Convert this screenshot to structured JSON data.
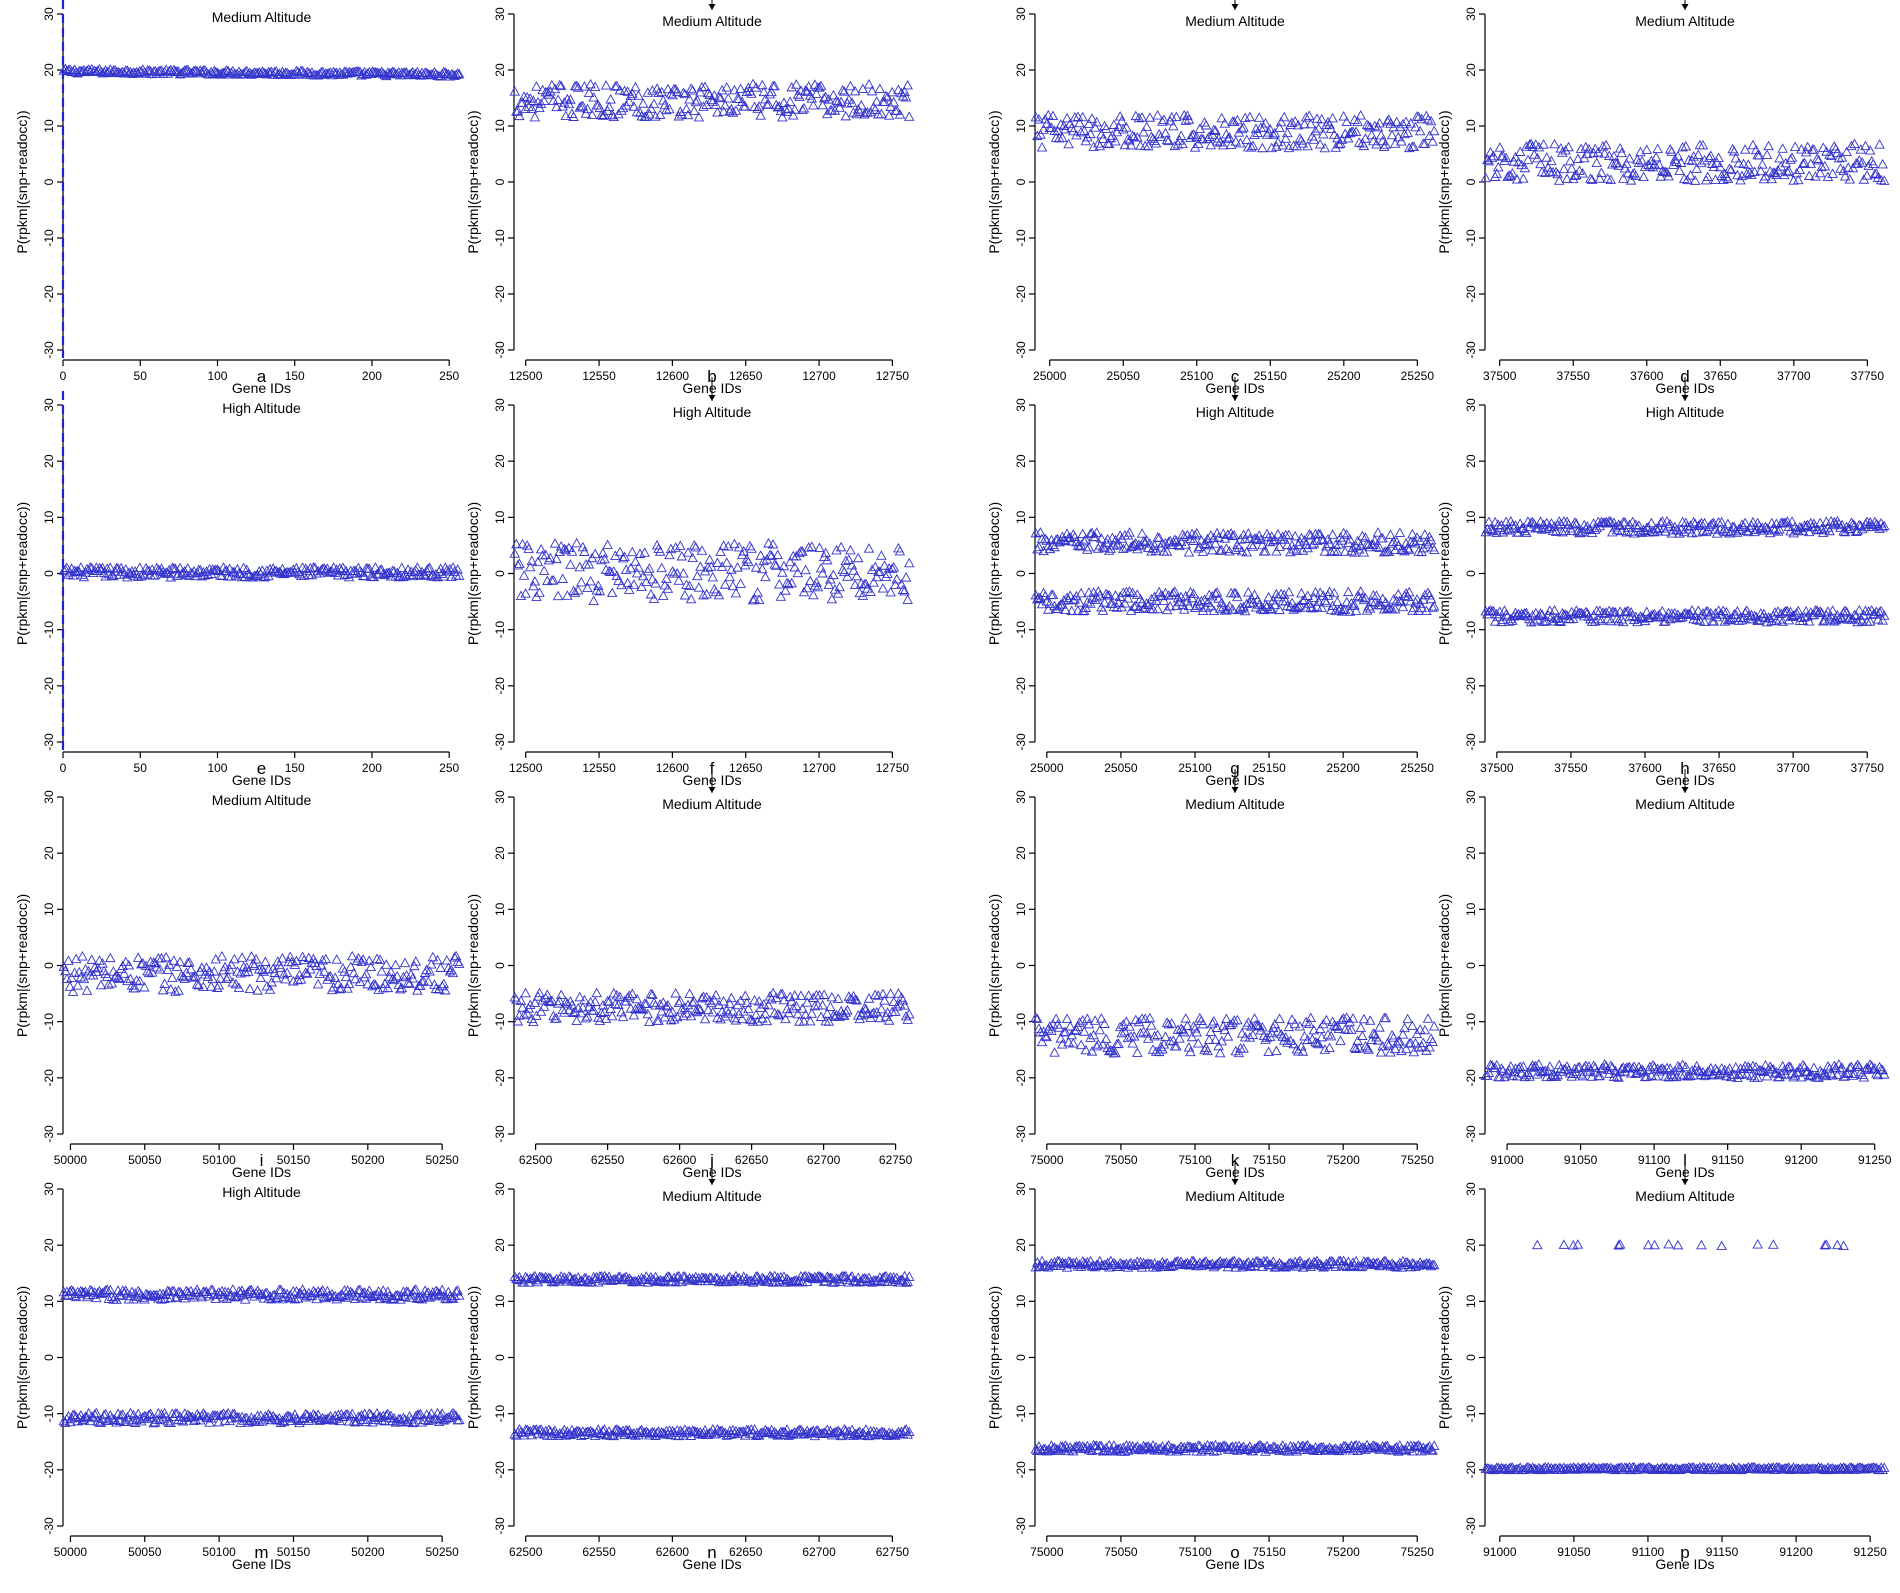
{
  "gene_ids_label": "Gene IDs",
  "ylabel": "P(rpkm|(snp+readocc))",
  "colors": {
    "marker": "#3333cc",
    "vline": "#2222cc",
    "axis": "#000000"
  },
  "chart_data": [
    {
      "id": "a",
      "type": "scatter",
      "title": "Medium Altitude",
      "arrow": false,
      "letter": "a",
      "xlabel": "Gene IDs",
      "ylabel": "P(rpkm|(snp+readocc))",
      "xlim": [
        0,
        257
      ],
      "xticks": [
        0,
        50,
        100,
        150,
        200,
        250
      ],
      "ylim": [
        -30,
        30
      ],
      "yticks": [
        -30,
        -20,
        -10,
        0,
        10,
        20,
        30
      ],
      "vline": 0,
      "series": [
        {
          "name": "",
          "center": 19.8,
          "spread": 0.4,
          "drift": -0.6
        }
      ]
    },
    {
      "id": "e",
      "type": "scatter",
      "title": "High Altitude",
      "arrow": false,
      "letter": "e",
      "xlabel": "Gene IDs",
      "ylabel": "P(rpkm|(snp+readocc))",
      "xlim": [
        0,
        257
      ],
      "xticks": [
        0,
        50,
        100,
        150,
        200,
        250
      ],
      "ylim": [
        -30,
        30
      ],
      "yticks": [
        -30,
        -20,
        -10,
        0,
        10,
        20,
        30
      ],
      "vline": 0,
      "series": [
        {
          "name": "",
          "center": 0.2,
          "spread": 0.9,
          "drift": 0
        }
      ]
    },
    {
      "id": "i",
      "type": "scatter",
      "title": "Medium Altitude",
      "arrow": false,
      "letter": "i",
      "xlabel": "Gene IDs",
      "ylabel": "P(rpkm|(snp+readocc))",
      "xlim": [
        49995,
        50262
      ],
      "xticks": [
        50000,
        50050,
        50100,
        50150,
        50200,
        50250
      ],
      "ylim": [
        -30,
        30
      ],
      "yticks": [
        -30,
        -20,
        -10,
        0,
        10,
        20,
        30
      ],
      "vline": null,
      "series": [
        {
          "name": "",
          "center": -1.5,
          "spread": 3.2,
          "drift": 0
        }
      ]
    },
    {
      "id": "m",
      "type": "scatter",
      "title": "High Altitude",
      "arrow": false,
      "letter": "m",
      "xlabel": "Gene IDs",
      "ylabel": "P(rpkm|(snp+readocc))",
      "xlim": [
        49995,
        50262
      ],
      "xticks": [
        50000,
        50050,
        50100,
        50150,
        50200,
        50250
      ],
      "ylim": [
        -30,
        30
      ],
      "yticks": [
        -30,
        -20,
        -10,
        0,
        10,
        20,
        30
      ],
      "vline": null,
      "series": [
        {
          "name": "",
          "center": 11.2,
          "spread": 0.9,
          "drift": 0
        },
        {
          "name": "",
          "center": -10.8,
          "spread": 0.9,
          "drift": 0
        }
      ]
    },
    {
      "id": "b",
      "type": "scatter",
      "title": "Medium Altitude",
      "arrow": true,
      "letter": "b",
      "xlabel": "Gene IDs",
      "ylabel": "P(rpkm|(snp+readocc))",
      "xlim": [
        12492,
        12762
      ],
      "xticks": [
        12500,
        12550,
        12600,
        12650,
        12700,
        12750
      ],
      "ylim": [
        -30,
        30
      ],
      "yticks": [
        -30,
        -20,
        -10,
        0,
        10,
        20,
        30
      ],
      "vline": null,
      "series": [
        {
          "name": "",
          "center": 14.5,
          "spread": 3,
          "drift": 0
        }
      ]
    },
    {
      "id": "f",
      "type": "scatter",
      "title": "High Altitude",
      "arrow": true,
      "letter": "f",
      "xlabel": "Gene IDs",
      "ylabel": "P(rpkm|(snp+readocc))",
      "xlim": [
        12492,
        12762
      ],
      "xticks": [
        12500,
        12550,
        12600,
        12650,
        12700,
        12750
      ],
      "ylim": [
        -30,
        30
      ],
      "yticks": [
        -30,
        -20,
        -10,
        0,
        10,
        20,
        30
      ],
      "vline": null,
      "series": [
        {
          "name": "",
          "center": 0.3,
          "spread": 5.2,
          "drift": 0
        }
      ]
    },
    {
      "id": "j",
      "type": "scatter",
      "title": "Medium Altitude",
      "arrow": true,
      "letter": "j",
      "xlabel": "Gene IDs",
      "ylabel": "P(rpkm|(snp+readocc))",
      "xlim": [
        62485,
        62760
      ],
      "xticks": [
        62500,
        62550,
        62600,
        62650,
        62700,
        62750
      ],
      "ylim": [
        -30,
        30
      ],
      "yticks": [
        -30,
        -20,
        -10,
        0,
        10,
        20,
        30
      ],
      "vline": null,
      "series": [
        {
          "name": "",
          "center": -7.5,
          "spread": 2.6,
          "drift": 0
        }
      ]
    },
    {
      "id": "n",
      "type": "scatter",
      "title": "Medium Altitude",
      "arrow": true,
      "letter": "n",
      "xlabel": "Gene IDs",
      "ylabel": "P(rpkm|(snp+readocc))",
      "xlim": [
        62492,
        62762
      ],
      "xticks": [
        62500,
        62550,
        62600,
        62650,
        62700,
        62750
      ],
      "ylim": [
        -30,
        30
      ],
      "yticks": [
        -30,
        -20,
        -10,
        0,
        10,
        20,
        30
      ],
      "vline": null,
      "series": [
        {
          "name": "",
          "center": 13.9,
          "spread": 0.6,
          "drift": 0
        },
        {
          "name": "",
          "center": -13.4,
          "spread": 0.6,
          "drift": 0
        }
      ]
    },
    {
      "id": "c",
      "type": "scatter",
      "title": "Medium Altitude",
      "arrow": true,
      "letter": "c",
      "xlabel": "Gene IDs",
      "ylabel": "P(rpkm|(snp+readocc))",
      "xlim": [
        24990,
        25262
      ],
      "xticks": [
        25000,
        25050,
        25100,
        25150,
        25200,
        25250
      ],
      "ylim": [
        -30,
        30
      ],
      "yticks": [
        -30,
        -20,
        -10,
        0,
        10,
        20,
        30
      ],
      "vline": null,
      "series": [
        {
          "name": "",
          "center": 9,
          "spread": 3,
          "drift": 0
        }
      ]
    },
    {
      "id": "g",
      "type": "scatter",
      "title": "High Altitude",
      "arrow": true,
      "letter": "g",
      "xlabel": "Gene IDs",
      "ylabel": "P(rpkm|(snp+readocc))",
      "xlim": [
        24992,
        25262
      ],
      "xticks": [
        25000,
        25050,
        25100,
        25150,
        25200,
        25250
      ],
      "ylim": [
        -30,
        30
      ],
      "yticks": [
        -30,
        -20,
        -10,
        0,
        10,
        20,
        30
      ],
      "vline": null,
      "series": [
        {
          "name": "",
          "center": 5.5,
          "spread": 1.8,
          "drift": 0
        },
        {
          "name": "",
          "center": -5,
          "spread": 1.8,
          "drift": 0
        }
      ]
    },
    {
      "id": "k",
      "type": "scatter",
      "title": "Medium Altitude",
      "arrow": true,
      "letter": "k",
      "xlabel": "Gene IDs",
      "ylabel": "P(rpkm|(snp+readocc))",
      "xlim": [
        74992,
        75262
      ],
      "xticks": [
        75000,
        75050,
        75100,
        75150,
        75200,
        75250
      ],
      "ylim": [
        -30,
        30
      ],
      "yticks": [
        -30,
        -20,
        -10,
        0,
        10,
        20,
        30
      ],
      "vline": null,
      "series": [
        {
          "name": "",
          "center": -12.5,
          "spread": 3.2,
          "drift": 0
        }
      ]
    },
    {
      "id": "o",
      "type": "scatter",
      "title": "Medium Altitude",
      "arrow": true,
      "letter": "o",
      "xlabel": "Gene IDs",
      "ylabel": "P(rpkm|(snp+readocc))",
      "xlim": [
        74992,
        75262
      ],
      "xticks": [
        75000,
        75050,
        75100,
        75150,
        75200,
        75250
      ],
      "ylim": [
        -30,
        30
      ],
      "yticks": [
        -30,
        -20,
        -10,
        0,
        10,
        20,
        30
      ],
      "vline": null,
      "series": [
        {
          "name": "",
          "center": 16.6,
          "spread": 0.6,
          "drift": 0
        },
        {
          "name": "",
          "center": -16.2,
          "spread": 0.6,
          "drift": 0
        }
      ]
    },
    {
      "id": "d",
      "type": "scatter",
      "title": "Medium Altitude",
      "arrow": true,
      "letter": "d",
      "xlabel": "Gene IDs",
      "ylabel": "P(rpkm|(snp+readocc))",
      "xlim": [
        37490,
        37762
      ],
      "xticks": [
        37500,
        37550,
        37600,
        37650,
        37700,
        37750
      ],
      "ylim": [
        -30,
        30
      ],
      "yticks": [
        -30,
        -20,
        -10,
        0,
        10,
        20,
        30
      ],
      "vline": null,
      "series": [
        {
          "name": "",
          "center": 3.5,
          "spread": 3.3,
          "drift": 0
        }
      ]
    },
    {
      "id": "h",
      "type": "scatter",
      "title": "High Altitude",
      "arrow": true,
      "letter": "h",
      "xlabel": "Gene IDs",
      "ylabel": "P(rpkm|(snp+readocc))",
      "xlim": [
        37492,
        37762
      ],
      "xticks": [
        37500,
        37550,
        37600,
        37650,
        37700,
        37750
      ],
      "ylim": [
        -30,
        30
      ],
      "yticks": [
        -30,
        -20,
        -10,
        0,
        10,
        20,
        30
      ],
      "vline": null,
      "series": [
        {
          "name": "",
          "center": 8.2,
          "spread": 1.1,
          "drift": 0
        },
        {
          "name": "",
          "center": -7.6,
          "spread": 1.1,
          "drift": 0
        }
      ]
    },
    {
      "id": "l",
      "type": "scatter",
      "title": "Medium Altitude",
      "arrow": true,
      "letter": "l",
      "xlabel": "Gene IDs",
      "ylabel": "P(rpkm|(snp+readocc))",
      "xlim": [
        90985,
        91257
      ],
      "xticks": [
        91000,
        91050,
        91100,
        91150,
        91200,
        91250
      ],
      "ylim": [
        -30,
        30
      ],
      "yticks": [
        -30,
        -20,
        -10,
        0,
        10,
        20,
        30
      ],
      "vline": null,
      "series": [
        {
          "name": "",
          "center": -18.8,
          "spread": 1.2,
          "drift": 0
        }
      ]
    },
    {
      "id": "p",
      "type": "scatter",
      "title": "Medium Altitude",
      "arrow": true,
      "letter": "p",
      "xlabel": "Gene IDs",
      "ylabel": "P(rpkm|(snp+readocc))",
      "xlim": [
        90990,
        91260
      ],
      "xticks": [
        91000,
        91050,
        91100,
        91150,
        91200,
        91250
      ],
      "ylim": [
        -30,
        30
      ],
      "yticks": [
        -30,
        -20,
        -10,
        0,
        10,
        20,
        30
      ],
      "vline": null,
      "series": [
        {
          "name": "",
          "center": 20,
          "spread": 0.15,
          "drift": 0,
          "sparse": true
        },
        {
          "name": "",
          "center": -19.8,
          "spread": 0.25,
          "drift": 0
        }
      ]
    }
  ]
}
